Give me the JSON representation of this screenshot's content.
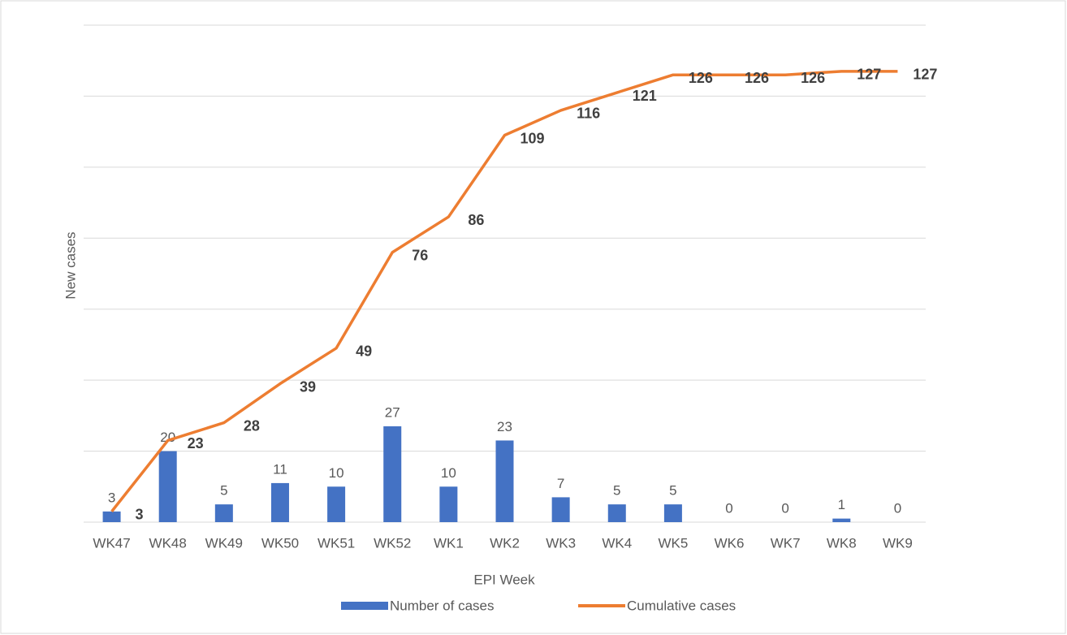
{
  "chart_data": {
    "type": "bar",
    "x_label": "EPI Week",
    "y_label": "New cases",
    "categories": [
      "WK47",
      "WK48",
      "WK49",
      "WK50",
      "WK51",
      "WK52",
      "WK1",
      "WK2",
      "WK3",
      "WK4",
      "WK5",
      "WK6",
      "WK7",
      "WK8",
      "WK9"
    ],
    "series": [
      {
        "name": "Number of cases",
        "type": "bar",
        "color": "#4472c4",
        "values": [
          3,
          20,
          5,
          11,
          10,
          27,
          10,
          23,
          7,
          5,
          5,
          0,
          0,
          1,
          0
        ]
      },
      {
        "name": "Cumulative cases",
        "type": "line",
        "color": "#ed7d31",
        "values": [
          3,
          23,
          28,
          39,
          49,
          76,
          86,
          109,
          116,
          121,
          126,
          126,
          126,
          127,
          127
        ]
      }
    ],
    "ylim": [
      0,
      140
    ],
    "yticks": [
      0,
      20,
      40,
      60,
      80,
      100,
      120,
      140
    ],
    "grid": true,
    "legend": "bottom"
  }
}
